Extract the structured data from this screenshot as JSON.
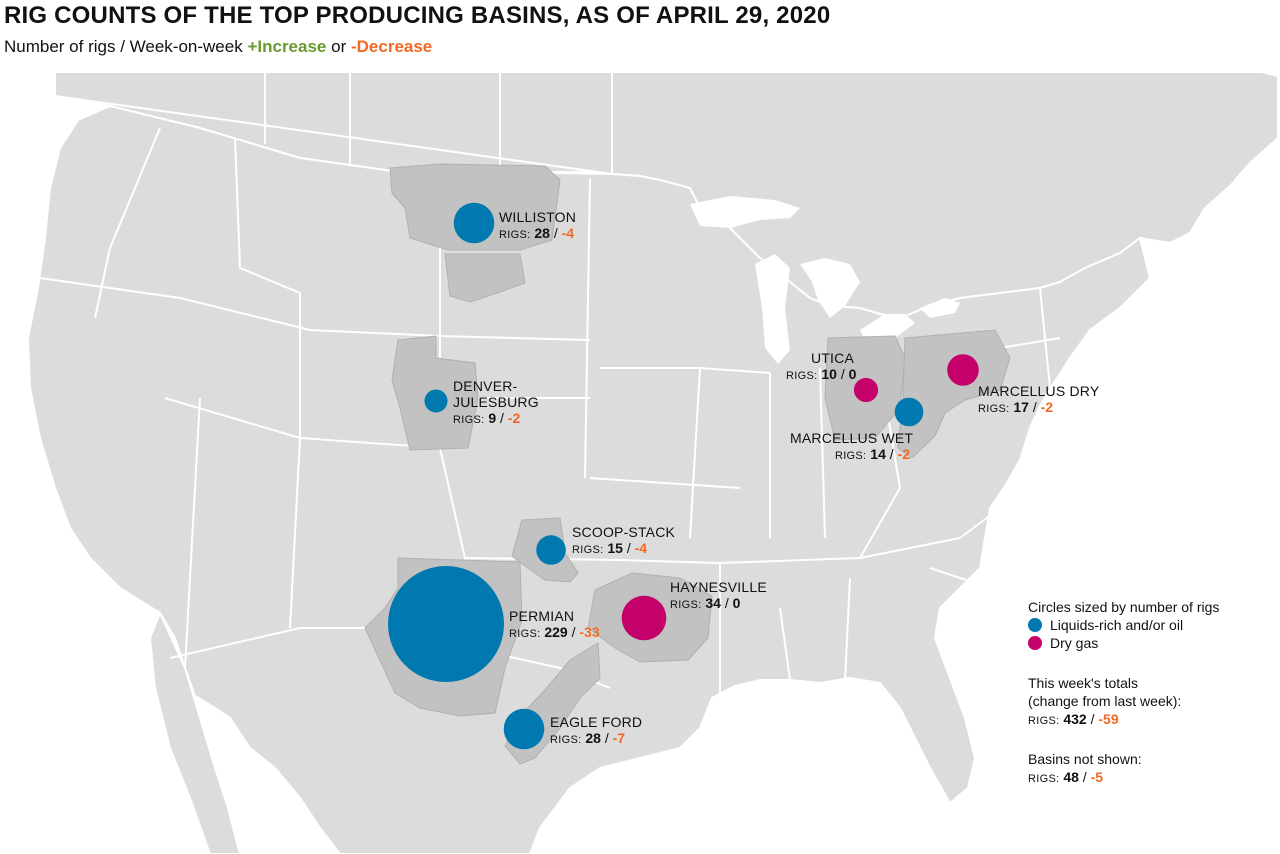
{
  "title": "RIG COUNTS OF THE TOP PRODUCING BASINS, AS OF APRIL 29, 2020",
  "subtitle": {
    "prefix": "Number of rigs / Week-on-week",
    "increase": "+Increase",
    "or": "or",
    "decrease": "-Decrease"
  },
  "colors": {
    "liquids": "#0079b0",
    "dry_gas": "#c4006b",
    "decrease": "#f26a21",
    "increase": "#6a9a2e",
    "land": "#dcdcdc",
    "basin": "#c2c2c2",
    "border": "#ffffff"
  },
  "basins": [
    {
      "name": "WILLISTON",
      "rigs_label": "RIGS:",
      "rigs": "28",
      "change": "-4",
      "type": "liquids"
    },
    {
      "name_line1": "DENVER-",
      "name_line2": "JULESBURG",
      "rigs_label": "RIGS:",
      "rigs": "9",
      "change": "-2",
      "type": "liquids"
    },
    {
      "name": "SCOOP-STACK",
      "rigs_label": "RIGS:",
      "rigs": "15",
      "change": "-4",
      "type": "liquids"
    },
    {
      "name": "PERMIAN",
      "rigs_label": "RIGS:",
      "rigs": "229",
      "change": "-33",
      "type": "liquids"
    },
    {
      "name": "EAGLE FORD",
      "rigs_label": "RIGS:",
      "rigs": "28",
      "change": "-7",
      "type": "liquids"
    },
    {
      "name": "HAYNESVILLE",
      "rigs_label": "RIGS:",
      "rigs": "34",
      "change": "0",
      "type": "dry_gas"
    },
    {
      "name": "UTICA",
      "rigs_label": "RIGS:",
      "rigs": "10",
      "change": "0",
      "type": "dry_gas"
    },
    {
      "name": "MARCELLUS DRY",
      "rigs_label": "RIGS:",
      "rigs": "17",
      "change": "-2",
      "type": "dry_gas"
    },
    {
      "name": "MARCELLUS WET",
      "rigs_label": "RIGS:",
      "rigs": "14",
      "change": "-2",
      "type": "liquids"
    }
  ],
  "legend": {
    "heading": "Circles sized by number of rigs",
    "liquids_label": "Liquids-rich and/or oil",
    "dry_gas_label": "Dry gas",
    "totals_line1": "This week's totals",
    "totals_line2": "(change from last week):",
    "totals_rigs_label": "RIGS:",
    "totals_rigs": "432",
    "totals_change": "-59",
    "not_shown_heading": "Basins not shown:",
    "not_shown_rigs_label": "RIGS:",
    "not_shown_rigs": "48",
    "not_shown_change": "-5"
  }
}
